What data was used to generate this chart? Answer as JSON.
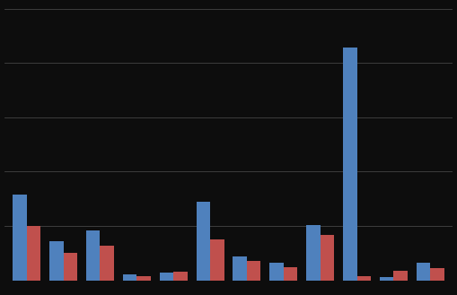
{
  "blue_values": [
    7.9,
    3.6,
    4.6,
    0.5,
    0.7,
    7.2,
    2.2,
    1.6,
    5.1,
    21.4,
    0.3,
    1.6
  ],
  "red_values": [
    5.0,
    2.5,
    3.2,
    0.4,
    0.8,
    3.8,
    1.8,
    1.2,
    4.2,
    0.4,
    0.9,
    1.1
  ],
  "n_groups": 12,
  "bar_width": 0.38,
  "bar_color_blue": "#4f81bd",
  "bar_color_red": "#c0504d",
  "background_color": "#0d0d0d",
  "grid_color": "#444444",
  "ylim": [
    0,
    25
  ],
  "yticks": [
    0,
    5,
    10,
    15,
    20,
    25
  ]
}
